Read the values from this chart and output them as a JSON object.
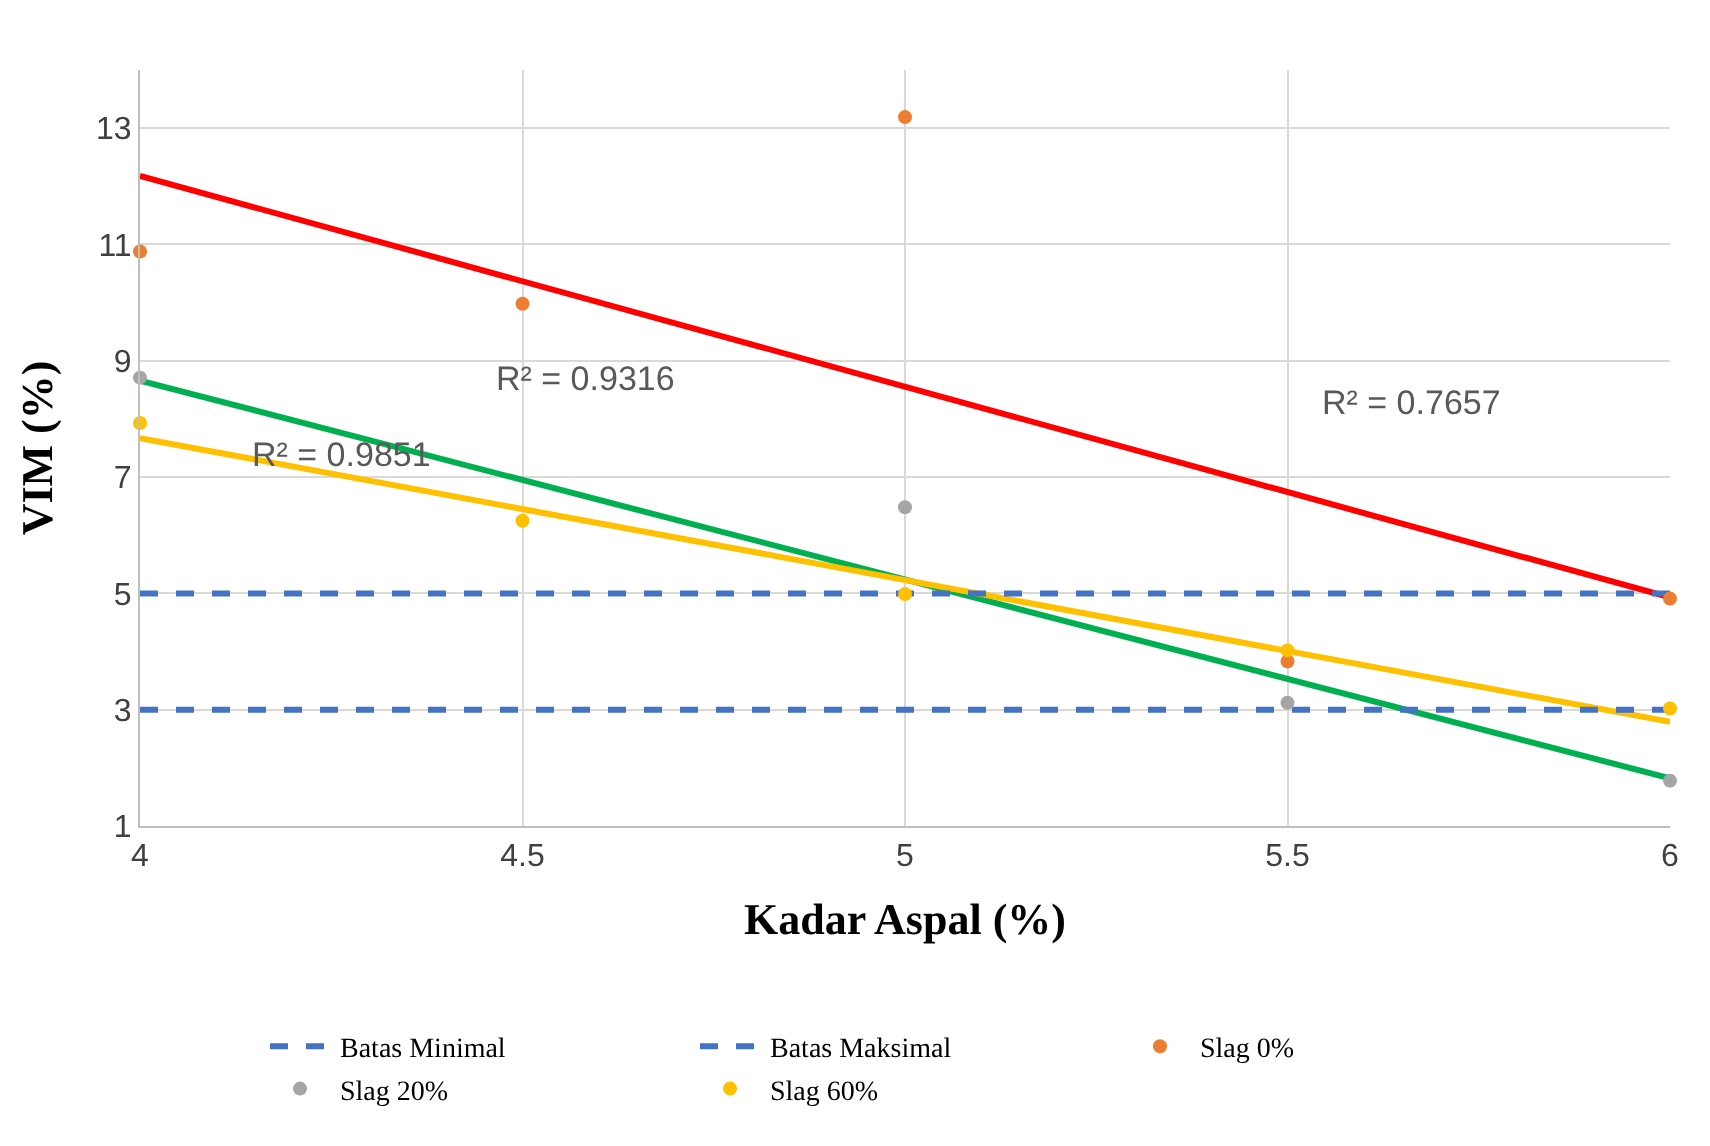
{
  "chart_data": {
    "type": "scatter",
    "xlabel": "Kadar Aspal (%)",
    "ylabel": "VIM (%)",
    "xlim": [
      4,
      6
    ],
    "xticks": [
      4,
      4.5,
      5,
      5.5,
      6
    ],
    "ylim": [
      1,
      14
    ],
    "yticks": [
      1,
      3,
      5,
      7,
      9,
      11,
      13
    ],
    "grid": true,
    "legend": "bottom",
    "series": [
      {
        "name": "Batas Minimal",
        "type": "line",
        "line_style": "dashed",
        "marker": "none",
        "color": "#4472c4",
        "x": [
          4,
          6
        ],
        "values": [
          3,
          3
        ]
      },
      {
        "name": "Batas Maksimal",
        "type": "line",
        "line_style": "dashed",
        "marker": "none",
        "color": "#4472c4",
        "x": [
          4,
          6
        ],
        "values": [
          5,
          5
        ]
      },
      {
        "name": "Slag 0%",
        "marker": "circle",
        "color": "#ed7d31",
        "x": [
          4,
          4.5,
          5,
          5.5,
          6
        ],
        "values": [
          10.88,
          9.98,
          13.19,
          3.83,
          4.91
        ]
      },
      {
        "name": "Slag 20%",
        "marker": "circle",
        "color": "#a5a5a5",
        "x": [
          4,
          4.5,
          5,
          5.5,
          6
        ],
        "values": [
          8.71,
          null,
          6.48,
          3.12,
          1.78
        ]
      },
      {
        "name": "Slag 60%",
        "marker": "circle",
        "color": "#ffc000",
        "x": [
          4,
          4.5,
          5,
          5.5,
          6
        ],
        "values": [
          7.93,
          6.25,
          4.99,
          4.02,
          3.02
        ]
      },
      {
        "type": "line",
        "line_style": "solid",
        "marker": "none",
        "color": "#ff0000",
        "x": [
          4,
          6
        ],
        "values": [
          12.18,
          4.93
        ]
      },
      {
        "type": "line",
        "line_style": "solid",
        "marker": "none",
        "color": "#00b050",
        "x": [
          4,
          6
        ],
        "values": [
          8.66,
          1.82
        ]
      },
      {
        "type": "line",
        "line_style": "solid",
        "marker": "none",
        "color": "#ffc000",
        "x": [
          4,
          6
        ],
        "values": [
          7.67,
          2.79
        ]
      }
    ],
    "annotations": [
      "R² = 0.9316",
      "R² = 0.9851",
      "R² = 0.7657"
    ]
  }
}
